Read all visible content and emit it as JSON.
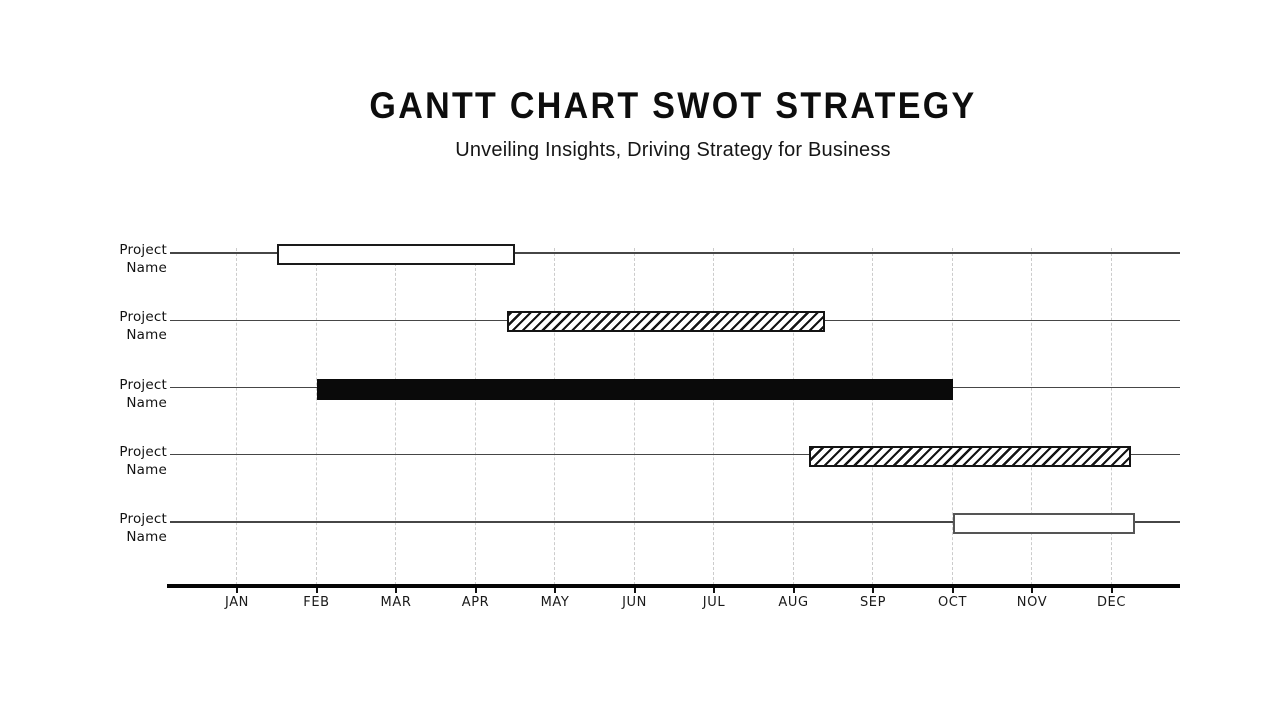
{
  "header": {
    "title": "GANTT CHART SWOT STRATEGY",
    "subtitle": "Unveiling Insights, Driving Strategy for Business"
  },
  "colors": {
    "ink": "#111111",
    "row_line": "#464646",
    "gridline": "#cccccc",
    "axis": "#050505",
    "bar_solid_fill": "#0a0a0a",
    "bar_outline_border": "#1a1a1a",
    "bar_outline_border_light": "#555555",
    "background": "#ffffff"
  },
  "chart_data": {
    "type": "bar",
    "variant": "gantt",
    "title": "GANTT CHART SWOT STRATEGY",
    "subtitle": "Unveiling Insights, Driving Strategy for Business",
    "legend": "none",
    "grid": "dashed vertical gridlines at each month",
    "x_axis": {
      "tick_labels": [
        "JAN",
        "FEB",
        "MAR",
        "APR",
        "MAY",
        "JUN",
        "JUL",
        "AUG",
        "SEP",
        "OCT",
        "NOV",
        "DEC"
      ],
      "range_months": [
        0,
        12
      ],
      "position": "bottom"
    },
    "rows": [
      {
        "label": [
          "Project",
          "Name"
        ],
        "start_month": 0.5,
        "end_month": 3.5,
        "bar_style": "outline"
      },
      {
        "label": [
          "Project",
          "Name"
        ],
        "start_month": 3.4,
        "end_month": 7.4,
        "bar_style": "hatch"
      },
      {
        "label": [
          "Project",
          "Name"
        ],
        "start_month": 1.0,
        "end_month": 9.0,
        "bar_style": "solid"
      },
      {
        "label": [
          "Project",
          "Name"
        ],
        "start_month": 7.2,
        "end_month": 11.25,
        "bar_style": "hatch"
      },
      {
        "label": [
          "Project",
          "Name"
        ],
        "start_month": 9.0,
        "end_month": 11.3,
        "bar_style": "outline",
        "border": "light"
      }
    ]
  }
}
